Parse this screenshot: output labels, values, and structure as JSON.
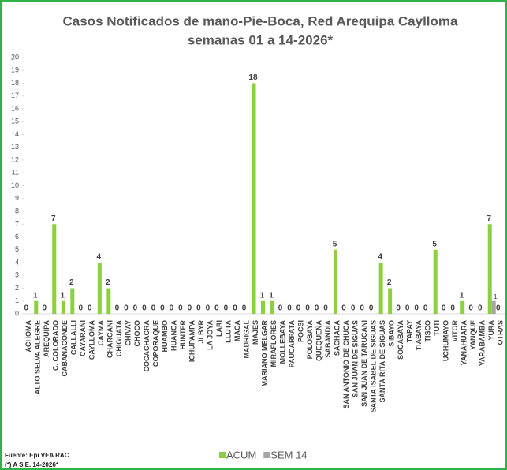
{
  "chart_data": {
    "type": "bar",
    "title": "Casos Notificados de mano-Pie-Boca, Red Arequipa Caylloma",
    "subtitle": "semanas 01 a 14-2026*",
    "categories": [
      "ACHOMA",
      "ALTO SELVA ALEGRE",
      "AREQUIPA",
      "C. COLORADO",
      "CABANACONDE",
      "CALLALLI",
      "CAYARANI",
      "CAYLLOMA",
      "CAYMA",
      "CHARCANI",
      "CHIGUATA",
      "CHIVAY",
      "CHOCO",
      "COCACHACRA",
      "COPORAQUE",
      "HUAMBO",
      "HUANCA",
      "HUNTER",
      "ICHUPAMPA",
      "JLBYR",
      "LA JOYA",
      "LARI",
      "LLUTA",
      "MACA",
      "MADRIGAL",
      "MAJES",
      "MARIANO MELGAR",
      "MIRAFLORES",
      "MOLLEBAYA",
      "PAUCARPATA",
      "POCSI",
      "POLOBAYA",
      "QUEQUEÑA",
      "SABANDIA",
      "SACHACA",
      "SAN ANTONIO DE CHUCA",
      "SAN JUAN DE SIGUAS",
      "SAN JUAN DE TARUCANI",
      "SANTA ISABEL DE SIGUAS",
      "SANTA RITA DE SIGUAS",
      "SIBAYO",
      "SOCABAYA",
      "TAPAY",
      "TIABAYA",
      "TISCO",
      "TUTI",
      "UCHUMAYO",
      "VITOR",
      "YANAHUARA",
      "YANQUE",
      "YARABAMBA",
      "YURA",
      "OTRAS"
    ],
    "series": [
      {
        "name": "ACUM",
        "color": "#8ccf3f",
        "values": [
          0,
          1,
          0,
          7,
          1,
          2,
          0,
          0,
          4,
          2,
          0,
          0,
          0,
          0,
          0,
          0,
          0,
          0,
          0,
          0,
          0,
          0,
          0,
          0,
          0,
          18,
          1,
          1,
          0,
          0,
          0,
          0,
          0,
          0,
          5,
          0,
          0,
          0,
          0,
          4,
          2,
          0,
          0,
          0,
          0,
          5,
          0,
          0,
          1,
          0,
          0,
          7,
          0
        ]
      },
      {
        "name": "SEM 14",
        "color": "#a6a6a6",
        "values": [
          0,
          0,
          0,
          0,
          0,
          0,
          0,
          0,
          0,
          0,
          0,
          0,
          0,
          0,
          0,
          0,
          0,
          0,
          0,
          0,
          0,
          0,
          0,
          0,
          0,
          0,
          0,
          0,
          0,
          0,
          0,
          0,
          0,
          0,
          0,
          0,
          0,
          0,
          0,
          0,
          0,
          0,
          0,
          0,
          0,
          0,
          0,
          0,
          0,
          0,
          0,
          1,
          0
        ]
      }
    ],
    "ylim": [
      0,
      20
    ],
    "yticks": [
      0,
      1,
      2,
      3,
      4,
      5,
      6,
      7,
      8,
      9,
      10,
      11,
      12,
      13,
      14,
      15,
      16,
      17,
      18,
      19,
      20
    ],
    "grid": false,
    "notes": [
      "Fuente: Epi VEA RAC",
      "(*) A S.E. 14-2026*"
    ]
  }
}
